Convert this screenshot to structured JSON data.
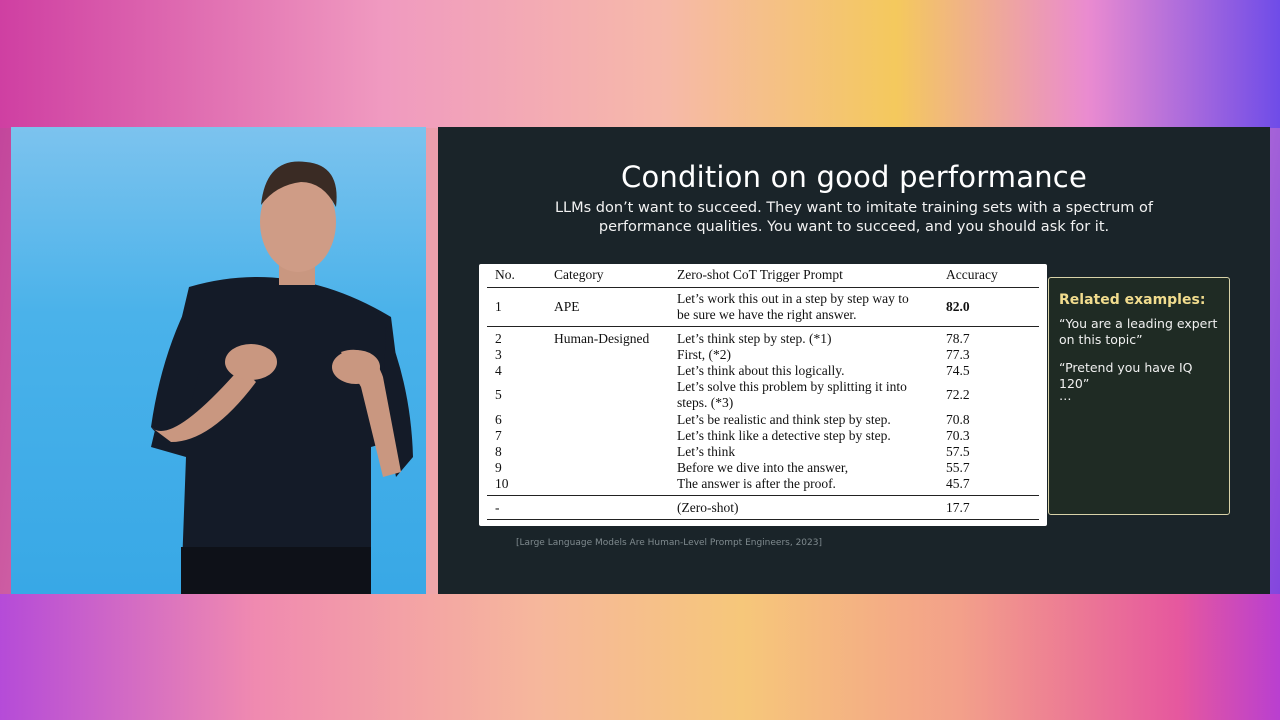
{
  "slide": {
    "title": "Condition on good performance",
    "subtitle": "LLMs don’t want to succeed. They want to imitate training sets with a spectrum of performance qualities. You want to succeed, and you should ask for it.",
    "table": {
      "headers": [
        "No.",
        "Category",
        "Zero-shot CoT Trigger Prompt",
        "Accuracy"
      ],
      "rows": [
        {
          "no": "1",
          "category": "APE",
          "prompt": "Let’s work this out in a step by step way to",
          "prompt2": "be sure we have the right answer.",
          "accuracy": "82.0"
        },
        {
          "no": "2",
          "category": "Human-Designed",
          "prompt": "Let’s think step by step. (*1)",
          "accuracy": "78.7"
        },
        {
          "no": "3",
          "category": "",
          "prompt": "First, (*2)",
          "accuracy": "77.3"
        },
        {
          "no": "4",
          "category": "",
          "prompt": "Let’s think about this logically.",
          "accuracy": "74.5"
        },
        {
          "no": "5",
          "category": "",
          "prompt": "Let’s solve this problem by splitting it into",
          "prompt2": "steps. (*3)",
          "accuracy": "72.2"
        },
        {
          "no": "6",
          "category": "",
          "prompt": "Let’s be realistic and think step by step.",
          "accuracy": "70.8"
        },
        {
          "no": "7",
          "category": "",
          "prompt": "Let’s think like a detective step by step.",
          "accuracy": "70.3"
        },
        {
          "no": "8",
          "category": "",
          "prompt": "Let’s think",
          "accuracy": "57.5"
        },
        {
          "no": "9",
          "category": "",
          "prompt": "Before we dive into the answer,",
          "accuracy": "55.7"
        },
        {
          "no": "10",
          "category": "",
          "prompt": "The answer is after the proof.",
          "accuracy": "45.7"
        },
        {
          "no": "-",
          "category": "",
          "prompt": "(Zero-shot)",
          "accuracy": "17.7"
        }
      ]
    },
    "related": {
      "title": "Related examples:",
      "items": [
        "“You are a leading expert on this topic”",
        "“Pretend you have IQ 120”",
        "…"
      ]
    },
    "citation": "[Large Language Models Are Human-Level Prompt Engineers, 2023]"
  },
  "colors": {
    "slide_bg": "#1a2429",
    "related_title": "#f1dc8e",
    "related_border": "#d8d2a8",
    "video_bg": "#38a8e6"
  }
}
